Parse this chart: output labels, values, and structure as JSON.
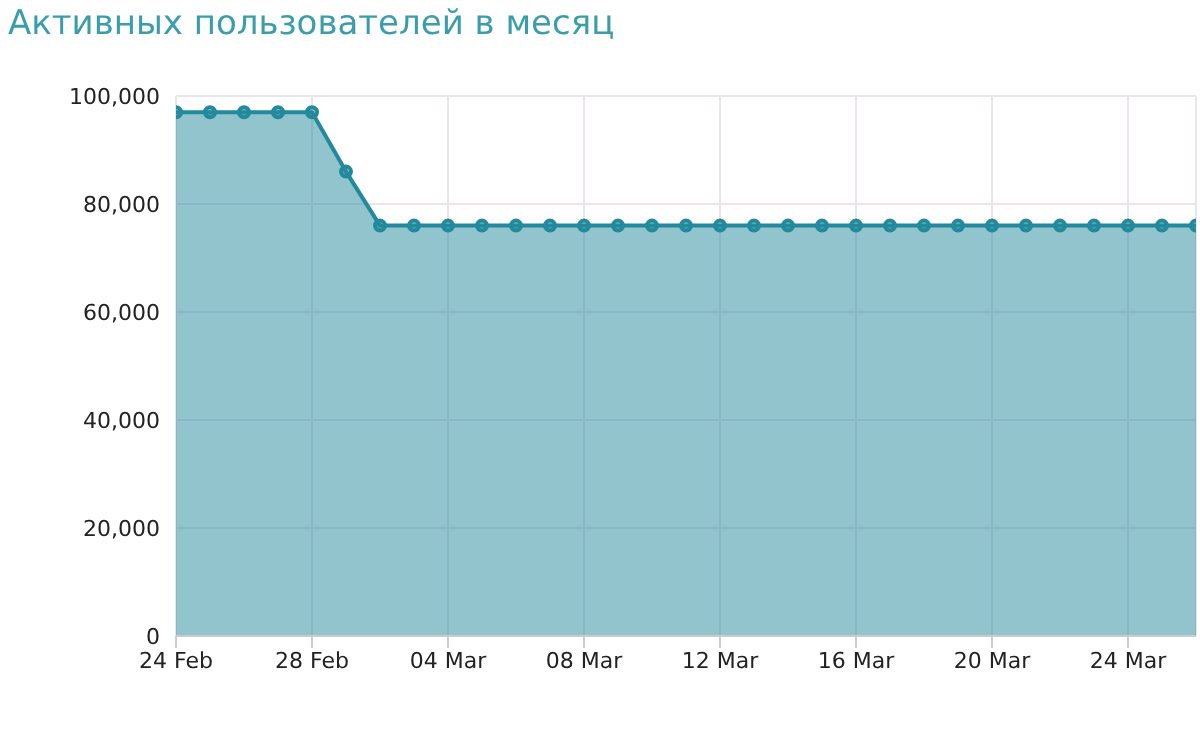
{
  "chart_data": {
    "type": "area",
    "title": "Активных пользователей в месяц",
    "x": [
      "--02-24",
      "--02-25",
      "--02-26",
      "--02-27",
      "--02-28",
      "--03-01",
      "--03-02",
      "--03-03",
      "--03-04",
      "--03-05",
      "--03-06",
      "--03-07",
      "--03-08",
      "--03-09",
      "--03-10",
      "--03-11",
      "--03-12",
      "--03-13",
      "--03-14",
      "--03-15",
      "--03-16",
      "--03-17",
      "--03-18",
      "--03-19",
      "--03-20",
      "--03-21",
      "--03-22",
      "--03-23",
      "--03-24",
      "--03-25",
      "--03-26"
    ],
    "series": [
      {
        "color": "#23899c",
        "values": [
          97000,
          97000,
          97000,
          97000,
          97000,
          86000,
          76000,
          76000,
          76000,
          76000,
          76000,
          76000,
          76000,
          76000,
          76000,
          76000,
          76000,
          76000,
          76000,
          76000,
          76000,
          76000,
          76000,
          76000,
          76000,
          76000,
          76000,
          76000,
          76000,
          76000,
          76000
        ]
      }
    ],
    "xlim": [
      "--02-24",
      "--03-26"
    ],
    "xticks": [
      {
        "value": "--02-24",
        "label": "24 Feb"
      },
      {
        "value": "--02-28",
        "label": "28 Feb"
      },
      {
        "value": "--03-04",
        "label": "04 Mar"
      },
      {
        "value": "--03-08",
        "label": "08 Mar"
      },
      {
        "value": "--03-12",
        "label": "12 Mar"
      },
      {
        "value": "--03-16",
        "label": "16 Mar"
      },
      {
        "value": "--03-20",
        "label": "20 Mar"
      },
      {
        "value": "--03-24",
        "label": "24 Mar"
      }
    ],
    "ylim": [
      0,
      100000
    ],
    "yticks": [
      {
        "value": 0,
        "label": "0"
      },
      {
        "value": 20000,
        "label": "20,000"
      },
      {
        "value": 40000,
        "label": "40,000"
      },
      {
        "value": 60000,
        "label": "60,000"
      },
      {
        "value": 80000,
        "label": "80,000"
      },
      {
        "value": 100000,
        "label": "100,000"
      }
    ],
    "grid": true,
    "marker": "circle",
    "line_style": "solid"
  }
}
